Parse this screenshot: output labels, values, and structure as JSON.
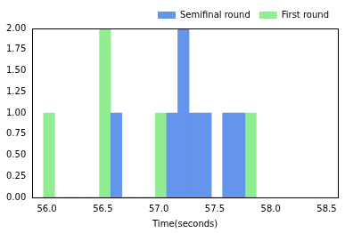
{
  "chart_data": {
    "type": "histogram",
    "x_label": "Time(seconds)",
    "bins": [
      55.97,
      56.07,
      56.17,
      56.27,
      56.37,
      56.47,
      56.57,
      56.67,
      56.77,
      56.87,
      56.97,
      57.07,
      57.17,
      57.27,
      57.37,
      57.47,
      57.57,
      57.67,
      57.77,
      57.87
    ],
    "series": [
      {
        "name": "First round",
        "color": "#90ee90",
        "values": [
          1,
          0,
          0,
          0,
          0,
          2,
          0,
          0,
          0,
          0,
          1,
          0,
          0,
          0,
          0,
          0,
          0,
          0,
          1
        ]
      },
      {
        "name": "Semifinal round",
        "color": "#6495ed",
        "values": [
          0,
          0,
          0,
          0,
          0,
          0,
          1,
          0,
          0,
          0,
          0,
          1,
          2,
          1,
          1,
          0,
          1,
          1,
          0
        ]
      }
    ],
    "xlim": [
      55.87,
      58.6
    ],
    "xticks": [
      {
        "value": 56,
        "label": "56.0"
      },
      {
        "value": 56.5,
        "label": "56.5"
      },
      {
        "value": 57,
        "label": "57.0"
      },
      {
        "value": 57.5,
        "label": "57.5"
      },
      {
        "value": 58,
        "label": "58.0"
      },
      {
        "value": 58.5,
        "label": "58.5"
      }
    ],
    "ylim": [
      0,
      2
    ],
    "yticks": [
      {
        "value": 0,
        "label": "0.00"
      },
      {
        "value": 0.25,
        "label": "0.25"
      },
      {
        "value": 0.5,
        "label": "0.50"
      },
      {
        "value": 0.75,
        "label": "0.75"
      },
      {
        "value": 1,
        "label": "1.00"
      },
      {
        "value": 1.25,
        "label": "1.25"
      },
      {
        "value": 1.5,
        "label": "1.50"
      },
      {
        "value": 1.75,
        "label": "1.75"
      },
      {
        "value": 2,
        "label": "2.00"
      }
    ],
    "grid": false,
    "legend": "upper right"
  }
}
